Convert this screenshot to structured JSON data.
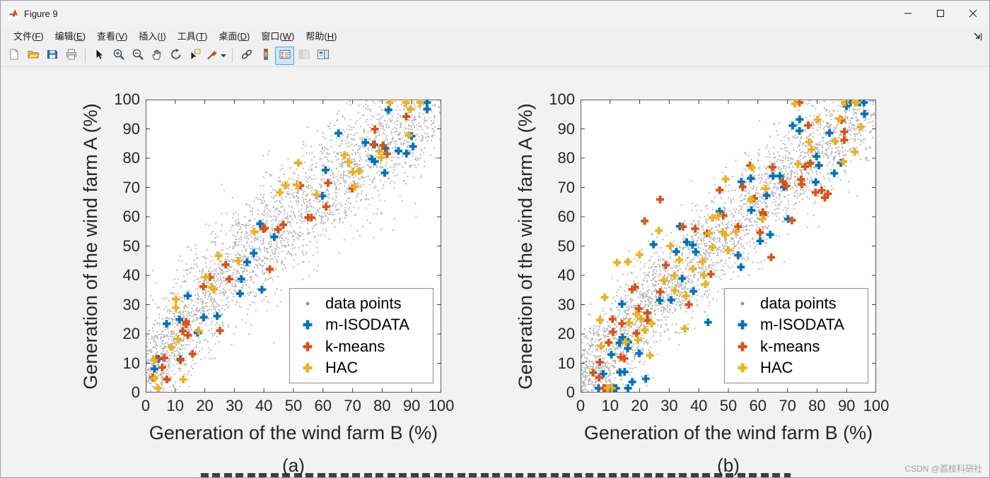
{
  "window": {
    "title": "Figure 9",
    "controls": [
      "minimize",
      "maximize",
      "close"
    ]
  },
  "menu": {
    "items": [
      {
        "pre": "文件(",
        "key": "F",
        "post": ")"
      },
      {
        "pre": "编辑(",
        "key": "E",
        "post": ")"
      },
      {
        "pre": "查看(",
        "key": "V",
        "post": ")"
      },
      {
        "pre": "插入(",
        "key": "I",
        "post": ")"
      },
      {
        "pre": "工具(",
        "key": "T",
        "post": ")"
      },
      {
        "pre": "桌面(",
        "key": "D",
        "post": ")"
      },
      {
        "pre": "窗口(",
        "key": "W",
        "post": ")"
      },
      {
        "pre": "帮助(",
        "key": "H",
        "post": ")"
      }
    ],
    "dock_icon": "dock-figure-icon"
  },
  "toolbar": {
    "buttons": [
      {
        "name": "new-figure-icon"
      },
      {
        "name": "open-file-icon"
      },
      {
        "name": "save-figure-icon"
      },
      {
        "name": "print-figure-icon"
      },
      {
        "separator": true
      },
      {
        "name": "edit-plot-icon"
      },
      {
        "name": "zoom-in-icon"
      },
      {
        "name": "zoom-out-icon"
      },
      {
        "name": "pan-icon"
      },
      {
        "name": "rotate-3d-icon"
      },
      {
        "name": "data-cursor-icon"
      },
      {
        "name": "brush-icon",
        "dropdown": true
      },
      {
        "separator": true
      },
      {
        "name": "link-plot-icon"
      },
      {
        "name": "insert-colorbar-icon"
      },
      {
        "name": "insert-legend-icon",
        "pressed": true
      },
      {
        "name": "hide-plot-tools-icon",
        "disabled": true
      },
      {
        "name": "show-plot-tools-icon"
      }
    ]
  },
  "watermark": "CSDN @荔枝科研社",
  "chart_data": [
    {
      "id": "a",
      "type": "scatter",
      "sublabel": "(a)",
      "xlabel": "Generation of the wind farm B (%)",
      "ylabel": "Generation of the wind farm A (%)",
      "xlim": [
        0,
        100
      ],
      "ylim": [
        0,
        100
      ],
      "xticks": [
        0,
        10,
        20,
        30,
        40,
        50,
        60,
        70,
        80,
        90,
        100
      ],
      "yticks": [
        0,
        10,
        20,
        30,
        40,
        50,
        60,
        70,
        80,
        90,
        100
      ],
      "grid": false,
      "legend": {
        "position": "southeast",
        "entries": [
          {
            "label": "data points",
            "marker": "dot",
            "color": "#8f8f8f"
          },
          {
            "label": "m-ISODATA",
            "marker": "plus",
            "color": "#0072BD"
          },
          {
            "label": "k-means",
            "marker": "plus",
            "color": "#D95319"
          },
          {
            "label": "HAC",
            "marker": "plus",
            "color": "#EDB120"
          }
        ]
      },
      "generator": {
        "description": "dense gray scatter band rising concavely from (0,0) to (100,100); colored plus markers are cluster centroids along the band",
        "background": {
          "n": 3000,
          "seed": 11,
          "x_exponent": 1.2,
          "curve_exponent": 0.72,
          "noise": 10,
          "color": "#7a7a7a",
          "opacity": 0.55,
          "size": 1.1
        },
        "series": [
          {
            "name": "m-ISODATA",
            "color": "#0072BD",
            "marker": "plus",
            "n": 32,
            "seed": 21,
            "noise": 8
          },
          {
            "name": "k-means",
            "color": "#D95319",
            "marker": "plus",
            "n": 32,
            "seed": 22,
            "noise": 8
          },
          {
            "name": "HAC",
            "color": "#EDB120",
            "marker": "plus",
            "n": 32,
            "seed": 23,
            "noise": 8
          }
        ]
      }
    },
    {
      "id": "b",
      "type": "scatter",
      "sublabel": "(b)",
      "xlabel": "Generation of the wind farm B (%)",
      "ylabel": "Generation of the wind farm A (%)",
      "xlim": [
        0,
        100
      ],
      "ylim": [
        0,
        100
      ],
      "xticks": [
        0,
        10,
        20,
        30,
        40,
        50,
        60,
        70,
        80,
        90,
        100
      ],
      "yticks": [
        0,
        10,
        20,
        30,
        40,
        50,
        60,
        70,
        80,
        90,
        100
      ],
      "grid": false,
      "legend": {
        "position": "southeast",
        "entries": [
          {
            "label": "data points",
            "marker": "dot",
            "color": "#8f8f8f"
          },
          {
            "label": "m-ISODATA",
            "marker": "plus",
            "color": "#0072BD"
          },
          {
            "label": "k-means",
            "marker": "plus",
            "color": "#D95319"
          },
          {
            "label": "HAC",
            "marker": "plus",
            "color": "#EDB120"
          }
        ]
      },
      "generator": {
        "description": "tighter near-diagonal scatter band from (0,0) to (100,100); many more centroid plus markers spread across the band width",
        "background": {
          "n": 3200,
          "seed": 41,
          "x_exponent": 1.25,
          "curve_exponent": 0.85,
          "noise": 9,
          "color": "#7a7a7a",
          "opacity": 0.55,
          "size": 1.1
        },
        "series": [
          {
            "name": "m-ISODATA",
            "color": "#0072BD",
            "marker": "plus",
            "n": 55,
            "seed": 51,
            "noise": 12
          },
          {
            "name": "k-means",
            "color": "#D95319",
            "marker": "plus",
            "n": 55,
            "seed": 52,
            "noise": 12
          },
          {
            "name": "HAC",
            "color": "#EDB120",
            "marker": "plus",
            "n": 55,
            "seed": 53,
            "noise": 12
          }
        ]
      }
    }
  ]
}
